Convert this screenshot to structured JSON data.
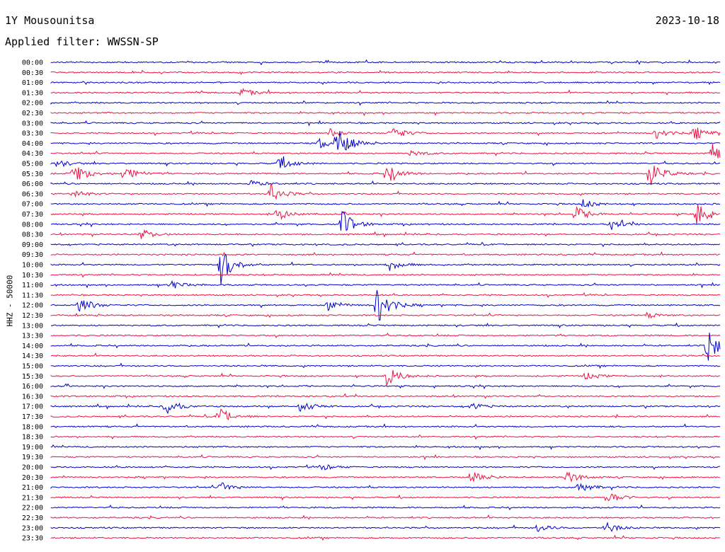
{
  "header": {
    "station": "1Y Mousounitsa",
    "date": "2023-10-18",
    "filter": "Applied filter: WWSSN-SP"
  },
  "chart_data": {
    "type": "line",
    "title": "1Y Mousounitsa",
    "ylabel": "HHZ - 50000",
    "row_labels": [
      "00:00",
      "00:30",
      "01:00",
      "01:30",
      "02:00",
      "02:30",
      "03:00",
      "03:30",
      "04:00",
      "04:30",
      "05:00",
      "05:30",
      "06:00",
      "06:30",
      "07:00",
      "07:30",
      "08:00",
      "08:30",
      "09:00",
      "09:30",
      "10:00",
      "10:30",
      "11:00",
      "11:30",
      "12:00",
      "12:30",
      "13:00",
      "13:30",
      "14:00",
      "14:30",
      "15:00",
      "15:30",
      "16:00",
      "16:30",
      "17:00",
      "17:30",
      "18:00",
      "18:30",
      "19:00",
      "19:30",
      "20:00",
      "20:30",
      "21:00",
      "21:30",
      "22:00",
      "22:30",
      "23:00",
      "23:30"
    ],
    "colors": [
      "#0000cc",
      "#ee1144"
    ],
    "row_minutes": 30,
    "events": [
      {
        "row": 3,
        "minute": 8.5,
        "amplitude": 6
      },
      {
        "row": 7,
        "minute": 12.5,
        "amplitude": 6
      },
      {
        "row": 7,
        "minute": 15.2,
        "amplitude": 12
      },
      {
        "row": 7,
        "minute": 27.1,
        "amplitude": 8
      },
      {
        "row": 7,
        "minute": 28.8,
        "amplitude": 10
      },
      {
        "row": 8,
        "minute": 12.8,
        "amplitude": 22
      },
      {
        "row": 8,
        "minute": 12.0,
        "amplitude": 8
      },
      {
        "row": 9,
        "minute": 29.5,
        "amplitude": 18
      },
      {
        "row": 9,
        "minute": 16.1,
        "amplitude": 5
      },
      {
        "row": 10,
        "minute": 10.2,
        "amplitude": 12
      },
      {
        "row": 10,
        "minute": 0.2,
        "amplitude": 6
      },
      {
        "row": 11,
        "minute": 1.0,
        "amplitude": 18
      },
      {
        "row": 11,
        "minute": 3.2,
        "amplitude": 14
      },
      {
        "row": 11,
        "minute": 15.0,
        "amplitude": 16
      },
      {
        "row": 11,
        "minute": 26.8,
        "amplitude": 22
      },
      {
        "row": 12,
        "minute": 8.9,
        "amplitude": 5
      },
      {
        "row": 13,
        "minute": 9.8,
        "amplitude": 14
      },
      {
        "row": 13,
        "minute": 1.0,
        "amplitude": 6
      },
      {
        "row": 14,
        "minute": 23.8,
        "amplitude": 7
      },
      {
        "row": 15,
        "minute": 10.1,
        "amplitude": 10
      },
      {
        "row": 15,
        "minute": 23.5,
        "amplitude": 11
      },
      {
        "row": 15,
        "minute": 28.9,
        "amplitude": 18
      },
      {
        "row": 16,
        "minute": 13.0,
        "amplitude": 22
      },
      {
        "row": 16,
        "minute": 25.1,
        "amplitude": 8
      },
      {
        "row": 17,
        "minute": 4.0,
        "amplitude": 8
      },
      {
        "row": 20,
        "minute": 7.6,
        "amplitude": 28
      },
      {
        "row": 20,
        "minute": 15.1,
        "amplitude": 8
      },
      {
        "row": 22,
        "minute": 5.3,
        "amplitude": 8
      },
      {
        "row": 24,
        "minute": 1.2,
        "amplitude": 14
      },
      {
        "row": 24,
        "minute": 12.4,
        "amplitude": 7
      },
      {
        "row": 24,
        "minute": 14.6,
        "amplitude": 30
      },
      {
        "row": 25,
        "minute": 26.7,
        "amplitude": 4
      },
      {
        "row": 28,
        "minute": 29.4,
        "amplitude": 26
      },
      {
        "row": 31,
        "minute": 15.0,
        "amplitude": 16
      },
      {
        "row": 31,
        "minute": 23.9,
        "amplitude": 6
      },
      {
        "row": 34,
        "minute": 5.1,
        "amplitude": 12
      },
      {
        "row": 34,
        "minute": 11.1,
        "amplitude": 10
      },
      {
        "row": 34,
        "minute": 18.8,
        "amplitude": 5
      },
      {
        "row": 35,
        "minute": 7.5,
        "amplitude": 14
      },
      {
        "row": 40,
        "minute": 12.1,
        "amplitude": 5
      },
      {
        "row": 41,
        "minute": 18.8,
        "amplitude": 9
      },
      {
        "row": 41,
        "minute": 23.1,
        "amplitude": 10
      },
      {
        "row": 42,
        "minute": 7.6,
        "amplitude": 7
      },
      {
        "row": 42,
        "minute": 23.6,
        "amplitude": 9
      },
      {
        "row": 43,
        "minute": 24.9,
        "amplitude": 10
      },
      {
        "row": 46,
        "minute": 21.7,
        "amplitude": 7
      },
      {
        "row": 46,
        "minute": 24.8,
        "amplitude": 9
      }
    ]
  }
}
